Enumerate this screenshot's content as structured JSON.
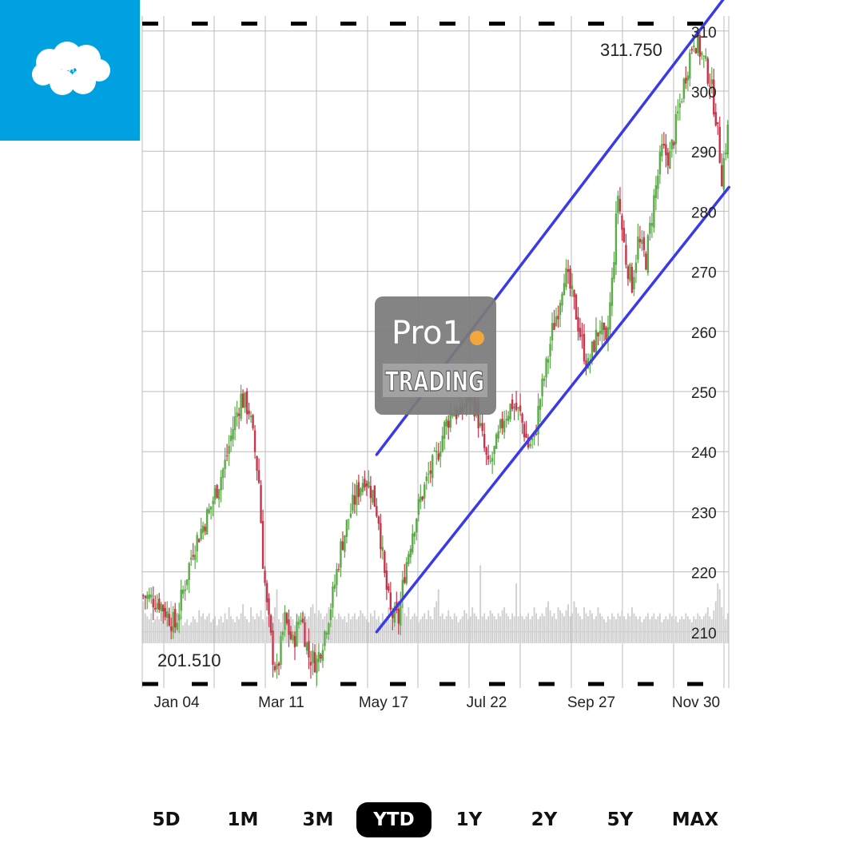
{
  "brand": {
    "name": "salesforce",
    "color": "#00a1e0"
  },
  "watermark": {
    "line1": "Pro1",
    "line2": "TRADING",
    "dot_color": "#f3a73b"
  },
  "range_selector": {
    "options": [
      "5D",
      "1M",
      "3M",
      "YTD",
      "1Y",
      "2Y",
      "5Y",
      "MAX"
    ],
    "selected": "YTD"
  },
  "colors": {
    "up": "#5aab46",
    "down": "#c8344a",
    "channel": "#3a3ae6",
    "volume": "#cfcfcf",
    "grid": "#bdbdbd",
    "text": "#222222"
  },
  "chart_data": {
    "type": "candlestick",
    "x_tick_labels": [
      "Jan 04",
      "Mar 11",
      "May 17",
      "Jul 22",
      "Sep 27",
      "Nov 30"
    ],
    "y_tick_labels": [
      210,
      220,
      230,
      240,
      250,
      260,
      270,
      280,
      290,
      300,
      310
    ],
    "ylim": [
      200,
      312
    ],
    "y_axis_side": "right",
    "grid": true,
    "high_label": "311.750",
    "low_label": "201.510",
    "high_value": 311.75,
    "low_value": 201.51,
    "price_path": [
      [
        0,
        216
      ],
      [
        8,
        215
      ],
      [
        16,
        211
      ],
      [
        25,
        224
      ],
      [
        33,
        230
      ],
      [
        41,
        238
      ],
      [
        45,
        244
      ],
      [
        49,
        249
      ],
      [
        53,
        247
      ],
      [
        56,
        240
      ],
      [
        58,
        235
      ],
      [
        60,
        222
      ],
      [
        62,
        214
      ],
      [
        65,
        206
      ],
      [
        67,
        203
      ],
      [
        71,
        212
      ],
      [
        75,
        208
      ],
      [
        79,
        213
      ],
      [
        83,
        206
      ],
      [
        87,
        205
      ],
      [
        91,
        210
      ],
      [
        95,
        216
      ],
      [
        99,
        224
      ],
      [
        103,
        229
      ],
      [
        107,
        233
      ],
      [
        111,
        236
      ],
      [
        115,
        233
      ],
      [
        118,
        229
      ],
      [
        121,
        219
      ],
      [
        124,
        213
      ],
      [
        128,
        212
      ],
      [
        131,
        220
      ],
      [
        135,
        227
      ],
      [
        139,
        232
      ],
      [
        143,
        236
      ],
      [
        147,
        239
      ],
      [
        151,
        244
      ],
      [
        155,
        247
      ],
      [
        159,
        246
      ],
      [
        163,
        250
      ],
      [
        167,
        247
      ],
      [
        170,
        242
      ],
      [
        173,
        237
      ],
      [
        177,
        241
      ],
      [
        181,
        246
      ],
      [
        185,
        248
      ],
      [
        189,
        246
      ],
      [
        193,
        241
      ],
      [
        196,
        242
      ],
      [
        199,
        249
      ],
      [
        202,
        254
      ],
      [
        205,
        260
      ],
      [
        208,
        264
      ],
      [
        211,
        270
      ],
      [
        214,
        267
      ],
      [
        217,
        263
      ],
      [
        220,
        258
      ],
      [
        223,
        254
      ],
      [
        226,
        258
      ],
      [
        229,
        261
      ],
      [
        232,
        257
      ],
      [
        235,
        268
      ],
      [
        238,
        283
      ],
      [
        240,
        277
      ],
      [
        242,
        272
      ],
      [
        245,
        268
      ],
      [
        248,
        275
      ],
      [
        252,
        272
      ],
      [
        256,
        282
      ],
      [
        260,
        290
      ],
      [
        264,
        289
      ],
      [
        268,
        296
      ],
      [
        272,
        303
      ],
      [
        276,
        309
      ],
      [
        280,
        306
      ],
      [
        284,
        302
      ],
      [
        287,
        296
      ],
      [
        290,
        286
      ],
      [
        292,
        291
      ],
      [
        294,
        296
      ]
    ],
    "volume": [
      14,
      10,
      9,
      8,
      10,
      7,
      8,
      9,
      8,
      7,
      10,
      9,
      8,
      12,
      14,
      9,
      8,
      7,
      8,
      9,
      6,
      7,
      8,
      6,
      7,
      9,
      8,
      7,
      11,
      9,
      10,
      8,
      9,
      10,
      7,
      8,
      9,
      6,
      8,
      9,
      7,
      10,
      8,
      12,
      9,
      8,
      7,
      9,
      8,
      10,
      13,
      9,
      8,
      7,
      12,
      9,
      8,
      10,
      9,
      11,
      8,
      7,
      9,
      14,
      10,
      9,
      12,
      18,
      8,
      7,
      10,
      9,
      8,
      7,
      9,
      8,
      6,
      10,
      8,
      9,
      11,
      10,
      8,
      9,
      12,
      13,
      10,
      9,
      11,
      10,
      8,
      9,
      10,
      12,
      7,
      8,
      9,
      8,
      10,
      9,
      8,
      9,
      7,
      10,
      8,
      9,
      10,
      8,
      9,
      11,
      10,
      9,
      8,
      7,
      10,
      9,
      11,
      8,
      9,
      7,
      10,
      8,
      9,
      12,
      8,
      9,
      10,
      11,
      8,
      9,
      13,
      10,
      9,
      12,
      8,
      9,
      10,
      9,
      7,
      8,
      9,
      10,
      8,
      11,
      9,
      8,
      12,
      14,
      18,
      9,
      10,
      8,
      9,
      11,
      9,
      8,
      10,
      9,
      7,
      8,
      9,
      11,
      10,
      8,
      9,
      12,
      10,
      9,
      8,
      26,
      9,
      10,
      8,
      9,
      11,
      10,
      9,
      8,
      10,
      9,
      11,
      12,
      10,
      9,
      8,
      10,
      9,
      20,
      9,
      10,
      9,
      8,
      9,
      10,
      8,
      9,
      12,
      10,
      8,
      9,
      10,
      9,
      12,
      14,
      11,
      9,
      10,
      8,
      12,
      11,
      10,
      9,
      11,
      13,
      9,
      10,
      14,
      12,
      10,
      9,
      8,
      12,
      10,
      9,
      11,
      10,
      8,
      9,
      12,
      10,
      9,
      8,
      7,
      9,
      8,
      10,
      9,
      8,
      10,
      9,
      11,
      9,
      8,
      10,
      9,
      12,
      10,
      9,
      8,
      9,
      7,
      8,
      9,
      10,
      8,
      9,
      10,
      8,
      9,
      10,
      7,
      8,
      9,
      8,
      10,
      9,
      8,
      9,
      7,
      8,
      9,
      8,
      10,
      9,
      8,
      7,
      9,
      8,
      10,
      9,
      8,
      9,
      10,
      12,
      9,
      8,
      11,
      14,
      20,
      18,
      12,
      9,
      8,
      10
    ],
    "volume_max": 40,
    "channel": {
      "upper": [
        [
          117,
          239.5
        ],
        [
          292,
          316.5
        ]
      ],
      "lower": [
        [
          117,
          210
        ],
        [
          292,
          284
        ]
      ]
    },
    "watermark_axis_labels_hidden": false
  }
}
